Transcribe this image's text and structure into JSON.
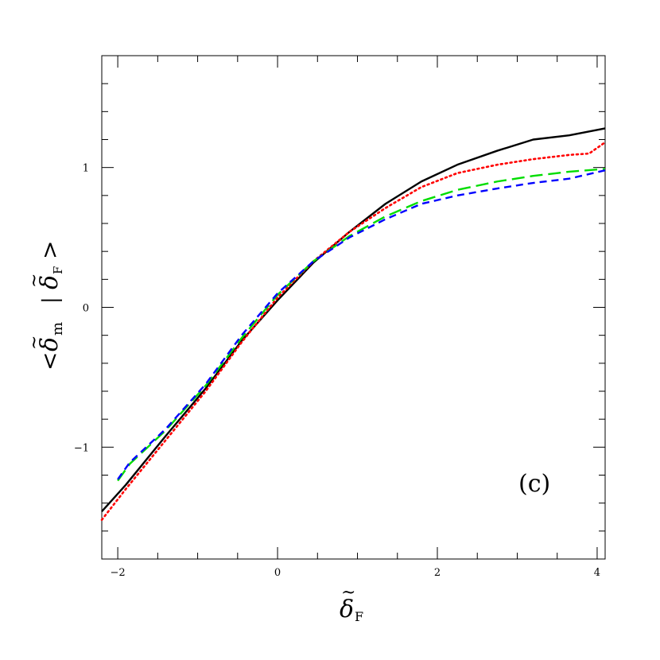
{
  "chart_data": {
    "type": "line",
    "title": "",
    "panel_label": "(c)",
    "xlabel": {
      "symbol": "δ",
      "accent": "~",
      "subscript": "F"
    },
    "ylabel": {
      "open": "<",
      "symbol": "δ",
      "accent": "~",
      "subscript": "m",
      "separator": "|",
      "cond_symbol": "δ",
      "cond_subscript": "F",
      "close": ">"
    },
    "xlim": [
      -2.2,
      4.1
    ],
    "ylim": [
      -1.8,
      1.8
    ],
    "xticks": [
      -2,
      0,
      2,
      4
    ],
    "yticks": [
      -1,
      0,
      1
    ],
    "x_minor_step": 0.5,
    "y_minor_step": 0.2,
    "grid": false,
    "series": [
      {
        "color": "#000000",
        "dash": "solid",
        "x": [
          -2.2,
          -1.9,
          -1.4,
          -0.9,
          -0.45,
          0.0,
          0.45,
          0.9,
          1.35,
          1.8,
          2.25,
          2.75,
          3.2,
          3.65,
          4.1
        ],
        "y": [
          -1.46,
          -1.27,
          -0.92,
          -0.58,
          -0.24,
          0.05,
          0.32,
          0.54,
          0.74,
          0.9,
          1.02,
          1.12,
          1.2,
          1.23,
          1.28
        ]
      },
      {
        "color": "#ff0000",
        "dash": "dotted",
        "x": [
          -2.2,
          -1.9,
          -1.4,
          -0.9,
          -0.45,
          0.0,
          0.45,
          0.9,
          1.35,
          1.8,
          2.25,
          2.75,
          3.2,
          3.65,
          3.9,
          4.1
        ],
        "y": [
          -1.52,
          -1.3,
          -0.95,
          -0.6,
          -0.25,
          0.07,
          0.33,
          0.54,
          0.71,
          0.86,
          0.96,
          1.02,
          1.06,
          1.09,
          1.1,
          1.18
        ]
      },
      {
        "color": "#00dd00",
        "dash": "long-dash",
        "x": [
          -2.0,
          -1.85,
          -1.4,
          -0.9,
          -0.45,
          0.0,
          0.45,
          0.9,
          1.35,
          1.8,
          2.25,
          2.75,
          3.2,
          3.65,
          4.1
        ],
        "y": [
          -1.24,
          -1.12,
          -0.88,
          -0.56,
          -0.22,
          0.09,
          0.33,
          0.51,
          0.65,
          0.76,
          0.84,
          0.9,
          0.94,
          0.97,
          0.99
        ]
      },
      {
        "color": "#0000ff",
        "dash": "short-dash",
        "x": [
          -2.0,
          -1.85,
          -1.4,
          -0.9,
          -0.45,
          0.0,
          0.45,
          0.9,
          1.35,
          1.8,
          2.25,
          2.75,
          3.2,
          3.65,
          4.1
        ],
        "y": [
          -1.23,
          -1.11,
          -0.87,
          -0.55,
          -0.2,
          0.1,
          0.33,
          0.5,
          0.63,
          0.74,
          0.8,
          0.85,
          0.89,
          0.92,
          0.98
        ]
      }
    ]
  }
}
